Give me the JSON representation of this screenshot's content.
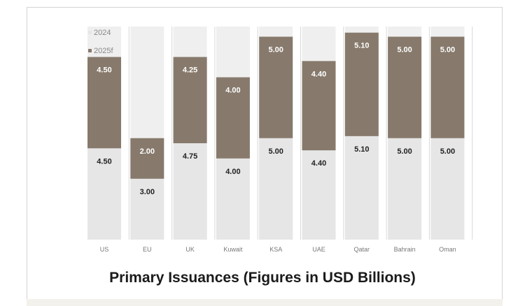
{
  "title": "Primary Issuances (Figures in USD Billions)",
  "legend": [
    {
      "label": "2024",
      "color": "#e6e6e6"
    },
    {
      "label": "2025f",
      "color": "#877a6c"
    }
  ],
  "chart_data": {
    "type": "bar",
    "stacked": true,
    "title": "Primary Issuances (Figures in USD Billions)",
    "categories": [
      "US",
      "EU",
      "UK",
      "Kuwait",
      "KSA",
      "UAE",
      "Qatar",
      "Bahrain",
      "Oman"
    ],
    "series": [
      {
        "name": "2024",
        "color": "#e6e6e6",
        "values": [
          4.5,
          3.0,
          4.75,
          4.0,
          5.0,
          4.4,
          5.1,
          5.0,
          5.0
        ],
        "labels": [
          "4.50",
          "3.00",
          "4.75",
          "4.00",
          "5.00",
          "4.40",
          "5.10",
          "5.00",
          "5.00"
        ]
      },
      {
        "name": "2025f",
        "color": "#877a6c",
        "values": [
          4.5,
          2.0,
          4.25,
          4.0,
          5.0,
          4.4,
          5.1,
          5.0,
          5.0
        ],
        "labels": [
          "4.50",
          "2.00",
          "4.25",
          "4.00",
          "5.00",
          "4.40",
          "5.10",
          "5.00",
          "5.00"
        ]
      }
    ],
    "ylim": [
      0,
      10.5
    ],
    "grid": false,
    "legend_position": "top-left"
  }
}
